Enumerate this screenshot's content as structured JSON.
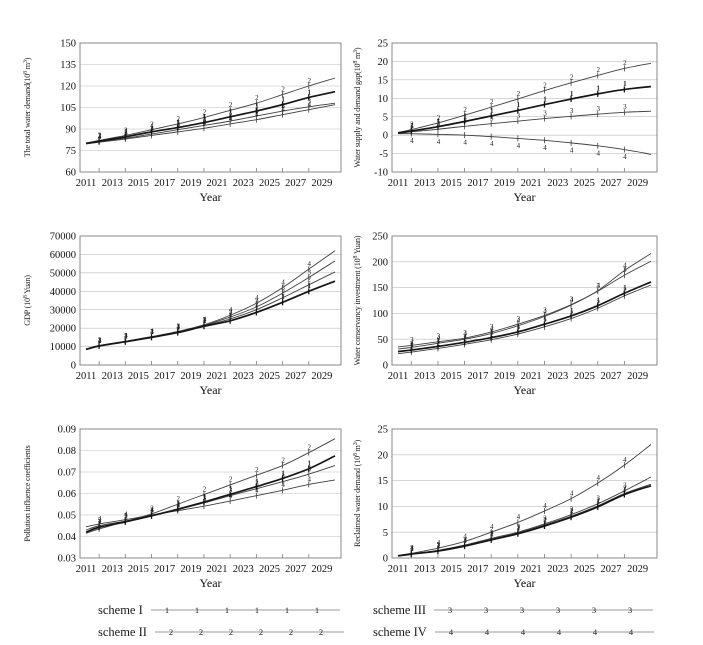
{
  "figure": {
    "xlabel": "Year",
    "xticks": [
      2011,
      2013,
      2015,
      2017,
      2019,
      2021,
      2023,
      2025,
      2027,
      2029
    ],
    "line_color": "#3f3f3f",
    "thick_line_color": "#151515",
    "grid_color": "#bdbdbd",
    "frame_color": "#7d7d7d"
  },
  "legend": [
    {
      "label": "scheme I",
      "marker": "1"
    },
    {
      "label": "scheme II",
      "marker": "2"
    },
    {
      "label": "scheme III",
      "marker": "3"
    },
    {
      "label": "scheme IV",
      "marker": "4"
    }
  ],
  "chart_data": [
    {
      "type": "line",
      "ylabel": "The total water demand(10^8 m^3)",
      "xlabel": "Year",
      "ylim": [
        60,
        150
      ],
      "ystep": 15,
      "ydec": 0,
      "x": [
        2011,
        2012,
        2014,
        2016,
        2018,
        2020,
        2022,
        2024,
        2026,
        2028,
        2030
      ],
      "series": [
        {
          "name": "1",
          "values": [
            80,
            81.5,
            84.5,
            88,
            91,
            94.5,
            98.5,
            102.5,
            107,
            112,
            116
          ]
        },
        {
          "name": "2",
          "values": [
            80,
            82,
            85.5,
            89.5,
            93.5,
            98,
            103,
            108,
            114,
            120,
            125.5
          ]
        },
        {
          "name": "3",
          "values": [
            80,
            81,
            83.5,
            86.5,
            89.5,
            92.5,
            95.5,
            99,
            102.5,
            105.5,
            108
          ]
        },
        {
          "name": "4",
          "values": [
            79.5,
            80.8,
            83,
            85.5,
            88,
            90.5,
            93.5,
            96.5,
            100,
            103.5,
            107
          ]
        }
      ]
    },
    {
      "type": "line",
      "ylabel": "Water supply and demand gap(10^8 m^3)",
      "xlabel": "Year",
      "ylim": [
        -10,
        25
      ],
      "ystep": 5,
      "ydec": 0,
      "x": [
        2011,
        2012,
        2014,
        2016,
        2018,
        2020,
        2022,
        2024,
        2026,
        2028,
        2030
      ],
      "series": [
        {
          "name": "1",
          "values": [
            0.6,
            1.1,
            2.3,
            3.7,
            5.2,
            6.7,
            8.3,
            9.8,
            11.2,
            12.4,
            13.2
          ]
        },
        {
          "name": "2",
          "values": [
            0.7,
            1.5,
            3.3,
            5.4,
            7.6,
            9.8,
            12.1,
            14.2,
            16.2,
            18.1,
            19.5
          ]
        },
        {
          "name": "3",
          "values": [
            0.5,
            0.9,
            1.6,
            2.4,
            3.1,
            3.8,
            4.5,
            5.1,
            5.7,
            6.2,
            6.5
          ]
        },
        {
          "name": "4",
          "values": [
            0.4,
            0.4,
            0.2,
            0,
            -0.4,
            -0.9,
            -1.4,
            -2.1,
            -2.9,
            -3.9,
            -5.2
          ],
          "label_side": "below"
        }
      ]
    },
    {
      "type": "line",
      "ylabel": "GDP (10^8 Yuan)",
      "xlabel": "Year",
      "ylim": [
        0,
        70000
      ],
      "ystep": 10000,
      "ydec": 0,
      "x": [
        2011,
        2012,
        2014,
        2016,
        2018,
        2020,
        2022,
        2024,
        2026,
        2028,
        2030
      ],
      "series": [
        {
          "name": "1",
          "values": [
            8500,
            10300,
            12600,
            15000,
            17600,
            21000,
            24000,
            28500,
            34000,
            40000,
            45500
          ]
        },
        {
          "name": "2",
          "values": [
            8500,
            10400,
            12700,
            15100,
            17800,
            21200,
            25000,
            30000,
            36500,
            43500,
            50500
          ]
        },
        {
          "name": "3",
          "values": [
            8500,
            10500,
            12800,
            15200,
            18000,
            21500,
            26000,
            31500,
            39000,
            47500,
            56500
          ]
        },
        {
          "name": "4",
          "values": [
            8500,
            10600,
            12900,
            15400,
            18200,
            21800,
            27000,
            33500,
            42000,
            52000,
            62000
          ]
        }
      ]
    },
    {
      "type": "line",
      "ylabel": "Water conservancy investment (10^8 Yuan)",
      "xlabel": "Year",
      "ylim": [
        0,
        250
      ],
      "ystep": 50,
      "ydec": 0,
      "x": [
        2011,
        2012,
        2014,
        2016,
        2018,
        2020,
        2022,
        2024,
        2026,
        2028,
        2030
      ],
      "series": [
        {
          "name": "1",
          "values": [
            26,
            29,
            36,
            44,
            53,
            64,
            79,
            95,
            115,
            139,
            161
          ]
        },
        {
          "name": "2",
          "values": [
            22,
            25,
            32,
            40,
            49,
            60,
            74,
            90,
            110,
            134,
            155
          ]
        },
        {
          "name": "3",
          "values": [
            35,
            38,
            45,
            52,
            64,
            79,
            96,
            117,
            143,
            174,
            201
          ]
        },
        {
          "name": "4",
          "values": [
            31,
            34,
            42,
            50,
            61,
            76,
            94,
            116,
            144,
            183,
            216
          ]
        }
      ]
    },
    {
      "type": "line",
      "ylabel": "Pollution influence coefficients",
      "xlabel": "Year",
      "ylim": [
        0.03,
        0.09
      ],
      "ystep": 0.01,
      "ydec": 2,
      "x": [
        2011,
        2012,
        2014,
        2016,
        2018,
        2020,
        2022,
        2024,
        2026,
        2028,
        2030
      ],
      "series": [
        {
          "name": "1",
          "values": [
            0.042,
            0.0443,
            0.0468,
            0.0496,
            0.0527,
            0.056,
            0.0596,
            0.0632,
            0.067,
            0.0715,
            0.0775
          ]
        },
        {
          "name": "2",
          "values": [
            0.0415,
            0.0435,
            0.047,
            0.0505,
            0.055,
            0.0595,
            0.064,
            0.0685,
            0.073,
            0.079,
            0.0855
          ]
        },
        {
          "name": "3",
          "values": [
            0.043,
            0.045,
            0.0472,
            0.0496,
            0.0525,
            0.0556,
            0.059,
            0.0622,
            0.0655,
            0.069,
            0.073
          ]
        },
        {
          "name": "4",
          "values": [
            0.0445,
            0.0458,
            0.0478,
            0.05,
            0.052,
            0.0541,
            0.0565,
            0.059,
            0.0615,
            0.0642,
            0.0663
          ]
        }
      ]
    },
    {
      "type": "line",
      "ylabel": "Reclaimed water demand (10^8 m^3)",
      "xlabel": "Year",
      "ylim": [
        0,
        25
      ],
      "ystep": 5,
      "ydec": 0,
      "x": [
        2011,
        2012,
        2014,
        2016,
        2018,
        2020,
        2022,
        2024,
        2026,
        2028,
        2030
      ],
      "series": [
        {
          "name": "1",
          "values": [
            0.4,
            0.75,
            1.35,
            2.3,
            3.5,
            4.7,
            6.2,
            7.9,
            9.9,
            12.3,
            14
          ]
        },
        {
          "name": "2",
          "values": [
            0.45,
            0.8,
            1.45,
            2.45,
            3.65,
            4.85,
            6.4,
            8.1,
            10.1,
            12.5,
            14.3
          ]
        },
        {
          "name": "3",
          "values": [
            0.4,
            0.8,
            1.5,
            2.5,
            3.8,
            5,
            6.6,
            8.4,
            10.5,
            13,
            15.7
          ]
        },
        {
          "name": "4",
          "values": [
            0.5,
            0.9,
            1.9,
            3.2,
            5,
            6.9,
            9.1,
            11.5,
            14.5,
            18,
            22
          ]
        }
      ]
    }
  ]
}
